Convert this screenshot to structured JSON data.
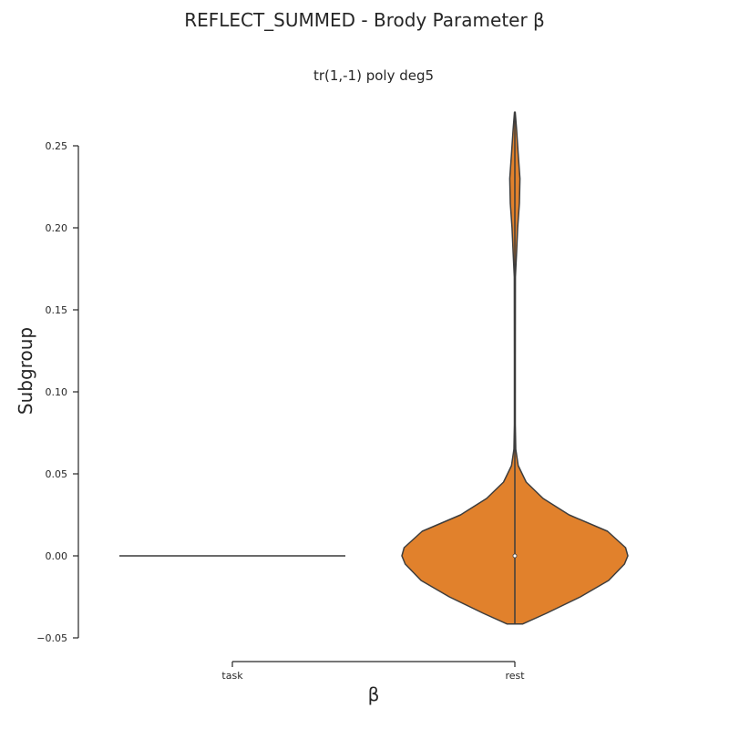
{
  "figure": {
    "suptitle": "REFLECT_SUMMED - Brody Parameter β",
    "subtitle": "tr(1,-1) poly deg5"
  },
  "chart_data": {
    "type": "violin",
    "title": "tr(1,-1) poly deg5",
    "xlabel": "β",
    "ylabel": "Subgroup",
    "categories": [
      "task",
      "rest"
    ],
    "ylim": [
      -0.05,
      0.25
    ],
    "yticks": [
      "0.25",
      "0.20",
      "0.15",
      "0.10",
      "0.05",
      "0.00",
      "−0.05"
    ],
    "ytick_values": [
      0.25,
      0.2,
      0.15,
      0.1,
      0.05,
      0.0,
      -0.05
    ],
    "grid": false,
    "series": [
      {
        "category": "task",
        "color": "#3a3a3a",
        "constant_value": 0.0,
        "density_profile": []
      },
      {
        "category": "rest",
        "color": "#e1812c",
        "median": 0.0,
        "min": -0.0415,
        "max": 0.2705,
        "density_profile": [
          [
            -0.0415,
            0.07
          ],
          [
            -0.035,
            0.28
          ],
          [
            -0.025,
            0.58
          ],
          [
            -0.015,
            0.83
          ],
          [
            -0.005,
            0.97
          ],
          [
            0.0,
            1.0
          ],
          [
            0.005,
            0.98
          ],
          [
            0.015,
            0.82
          ],
          [
            0.025,
            0.48
          ],
          [
            0.035,
            0.25
          ],
          [
            0.045,
            0.1
          ],
          [
            0.055,
            0.03
          ],
          [
            0.065,
            0.008
          ],
          [
            0.08,
            0.004
          ],
          [
            0.12,
            0.004
          ],
          [
            0.17,
            0.005
          ],
          [
            0.185,
            0.015
          ],
          [
            0.2,
            0.025
          ],
          [
            0.215,
            0.04
          ],
          [
            0.23,
            0.045
          ],
          [
            0.245,
            0.03
          ],
          [
            0.26,
            0.015
          ],
          [
            0.2705,
            0.003
          ]
        ]
      }
    ]
  }
}
